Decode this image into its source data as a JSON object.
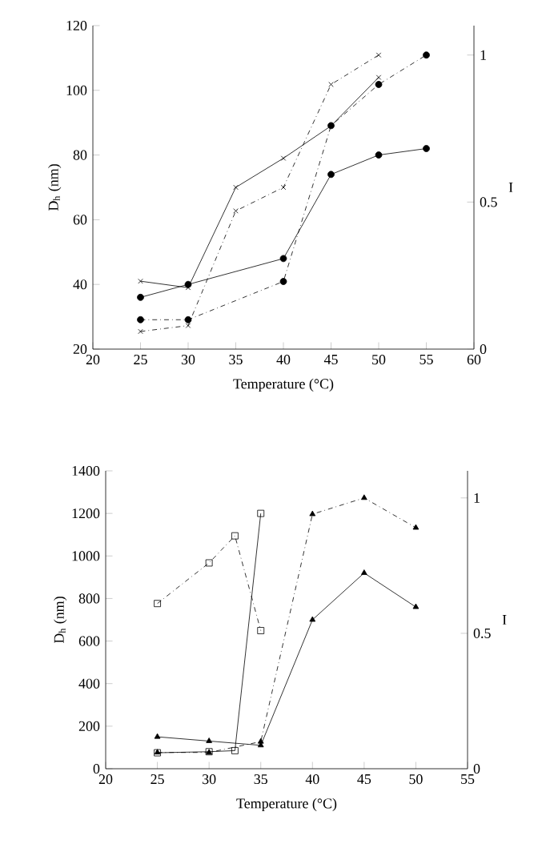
{
  "chart_data": [
    {
      "type": "line",
      "xlabel": "Temperature (°C)",
      "ylabel": "D$_{h}$ (nm)",
      "y2label": "I",
      "xlim": [
        20,
        60
      ],
      "xticks": [
        20,
        25,
        30,
        35,
        40,
        45,
        50,
        55,
        60
      ],
      "ylim": [
        20,
        120
      ],
      "yticks": [
        20,
        40,
        60,
        80,
        100,
        120
      ],
      "y2lim": [
        0,
        1.1
      ],
      "y2ticks": [
        0,
        0.5,
        1
      ],
      "series": [
        {
          "color": "#000000",
          "marker": "cross",
          "line_style": "solid",
          "x": [
            25,
            30,
            35,
            40,
            45,
            50
          ],
          "values": [
            41,
            39,
            70,
            79,
            89,
            104
          ]
        },
        {
          "color": "#000000",
          "marker": "circle",
          "line_style": "solid",
          "x": [
            25,
            30,
            40,
            45,
            50,
            55
          ],
          "values": [
            36,
            40,
            48,
            74,
            80,
            82
          ]
        },
        {
          "color": "#000000",
          "marker": "cross",
          "line_style": "dashdot",
          "axis": "y2",
          "x": [
            25,
            30,
            35,
            40,
            45,
            50
          ],
          "values": [
            0.06,
            0.08,
            0.47,
            0.55,
            0.9,
            1.0
          ]
        },
        {
          "color": "#000000",
          "marker": "circle",
          "line_style": "dashdot",
          "axis": "y2",
          "x": [
            25,
            30,
            40,
            45,
            50,
            55
          ],
          "values": [
            0.1,
            0.1,
            0.23,
            0.76,
            0.9,
            1.0
          ]
        }
      ]
    },
    {
      "type": "line",
      "xlabel": "Temperature (°C)",
      "ylabel": "D$_{h}$ (nm)",
      "y2label": "I",
      "xlim": [
        20,
        55
      ],
      "xticks": [
        20,
        25,
        30,
        35,
        40,
        45,
        50,
        55
      ],
      "ylim": [
        0,
        1400
      ],
      "yticks": [
        0,
        200,
        400,
        600,
        800,
        1000,
        1200,
        1400
      ],
      "y2lim": [
        0,
        1.1
      ],
      "y2ticks": [
        0,
        0.5,
        1
      ],
      "series": [
        {
          "color": "#000000",
          "marker": "square",
          "line_style": "solid",
          "x": [
            25,
            30,
            32.5,
            35
          ],
          "values": [
            75,
            80,
            85,
            1200
          ]
        },
        {
          "color": "#000000",
          "marker": "square",
          "line_style": "dashdot",
          "axis": "y2",
          "x": [
            25,
            30,
            32.5,
            35
          ],
          "values": [
            0.61,
            0.76,
            0.86,
            0.51
          ]
        },
        {
          "color": "#000000",
          "marker": "triangle",
          "line_style": "solid",
          "x": [
            25,
            30,
            35,
            40,
            45,
            50
          ],
          "values": [
            150,
            130,
            110,
            700,
            920,
            760
          ]
        },
        {
          "color": "#000000",
          "marker": "triangle",
          "line_style": "dashdot",
          "axis": "y2",
          "x": [
            25,
            30,
            35,
            40,
            45,
            50
          ],
          "values": [
            0.06,
            0.06,
            0.1,
            0.94,
            1.0,
            0.89
          ]
        }
      ]
    }
  ]
}
